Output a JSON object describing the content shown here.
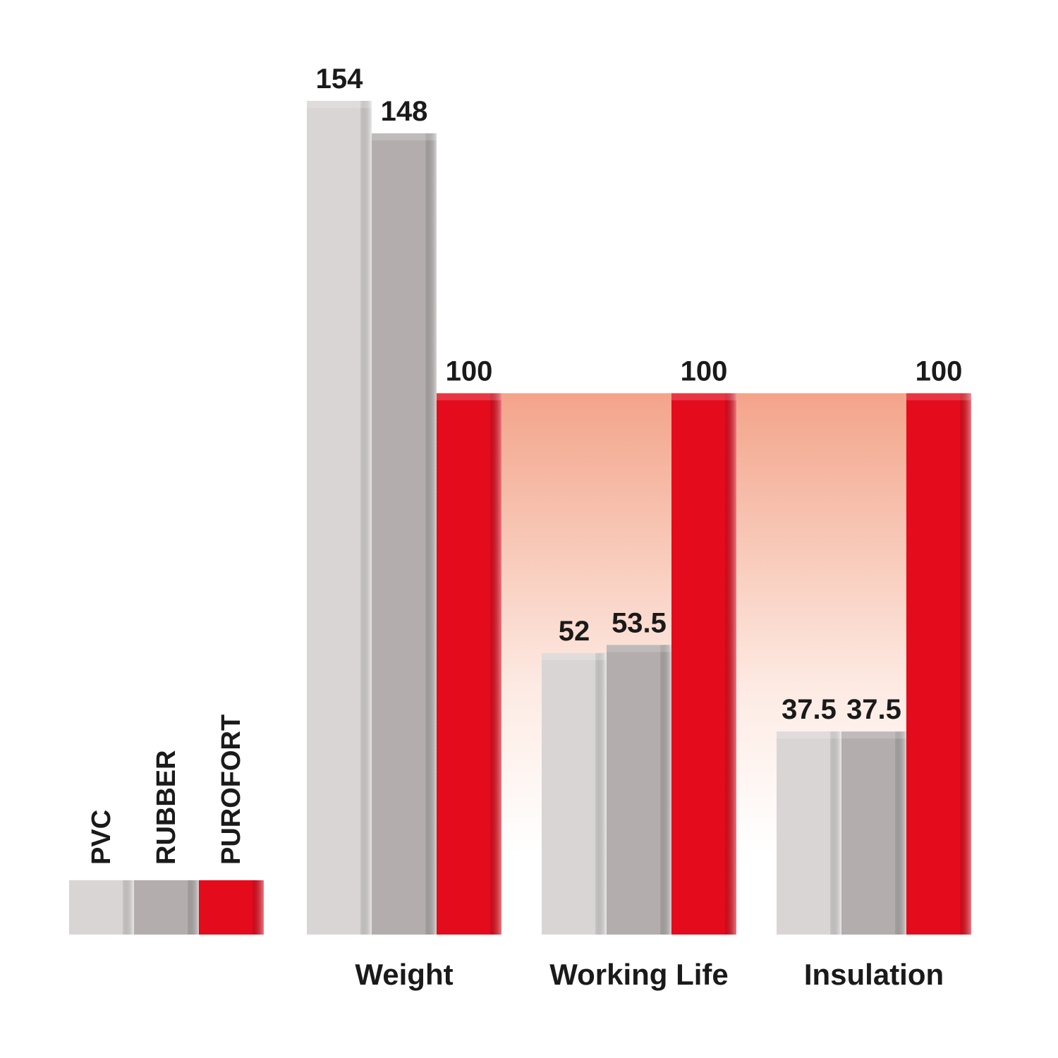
{
  "chart_data": {
    "type": "bar",
    "categories": [
      "Weight",
      "Working Life",
      "Insulation"
    ],
    "series": [
      {
        "name": "PVC",
        "color": "#d9d5d5",
        "values": [
          154,
          52,
          37.5
        ]
      },
      {
        "name": "RUBBER",
        "color": "#b3adad",
        "values": [
          148,
          53.5,
          37.5
        ]
      },
      {
        "name": "PUROFORT",
        "color": "#e30b1c",
        "values": [
          100,
          100,
          100
        ]
      }
    ],
    "legend": "bottom-left"
  }
}
